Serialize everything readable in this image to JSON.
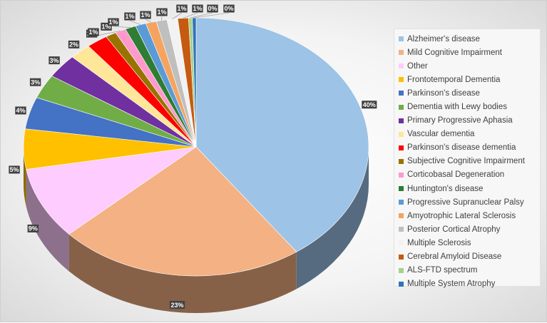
{
  "chart_data": {
    "type": "pie",
    "style": "3d",
    "legend_position": "right",
    "labels": [
      "Alzheimer's disease",
      "Mild Cognitive Impairment",
      "Other",
      "Frontotemporal Dementia",
      "Parkinson's disease",
      "Dementia with Lewy bodies",
      "Primary Progressive Aphasia",
      "Vascular dementia",
      "Parkinson's disease dementia",
      "Subjective Cognitive Impairment",
      "Corticobasal Degeneration",
      "Huntington's disease",
      "Progressive Supranuclear Palsy",
      "Amyotrophic Lateral Sclerosis",
      "Posterior Cortical Atrophy",
      "Multiple Sclerosis",
      "Cerebral Amyloid Disease",
      "ALS-FTD spectrum",
      "Multiple System Atrophy"
    ],
    "values": [
      40,
      23,
      9,
      5,
      4,
      3,
      3,
      2,
      2,
      1,
      1,
      1,
      1,
      1,
      1,
      1,
      1,
      0,
      0
    ],
    "data_labels": [
      "40%",
      "23%",
      "9%",
      "5%",
      "4%",
      "3%",
      "3%",
      "2%",
      "2%",
      "1%",
      "1%",
      "1%",
      "1%",
      "1%",
      "1%",
      "1%",
      "1%",
      "0%",
      "0%"
    ],
    "colors": [
      "#9dc3e6",
      "#f4b183",
      "#ffccff",
      "#ffc000",
      "#4472c4",
      "#70ad47",
      "#7030a0",
      "#ffe699",
      "#ff0000",
      "#997300",
      "#ff99cc",
      "#2e7d32",
      "#5b9bd5",
      "#f4a460",
      "#bfbfbf",
      "#f2f2f2",
      "#c55a11",
      "#a9d18e",
      "#2e75b6"
    ]
  }
}
